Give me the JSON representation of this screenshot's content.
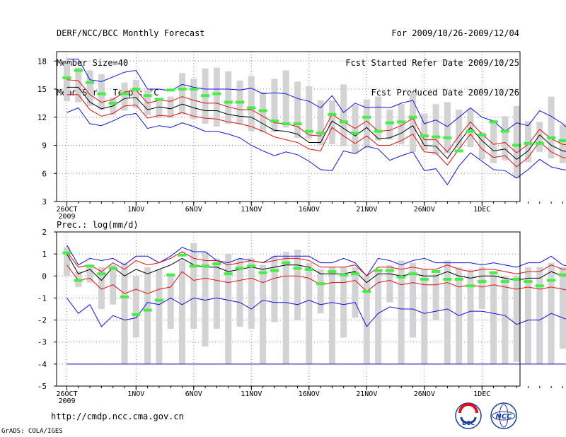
{
  "header": {
    "left_lines": [
      "DERF/NCC/BCC Monthly Forecast",
      "Member Size=40",
      "Mean Surf. Temp.: °C"
    ],
    "right_lines": [
      "For 2009/10/26-2009/12/04",
      "Fcst Started Refer Date 2009/10/25",
      "Fcst Produced Date 2009/10/26"
    ]
  },
  "footer": {
    "url": "http://cmdp.ncc.cma.gov.cn",
    "credit": "GrADS: COLA/IGES",
    "logo_left_text": "BCC",
    "logo_right_text": "NCC"
  },
  "colors": {
    "ensemble_box": "#d3d3d6",
    "median": "#44ee44",
    "mean": "#000000",
    "spread": "#dd1111",
    "extreme": "#1111dd",
    "grid": "#888888"
  },
  "chart_data": [
    {
      "type": "box",
      "title": "Mean Surf. Temp.: °C",
      "ylim": [
        3,
        19
      ],
      "yticks": [
        3,
        6,
        9,
        12,
        15,
        18
      ],
      "xticks": [
        {
          "day": 0,
          "label": "26OCT"
        },
        {
          "day": 6,
          "label": "1NOV"
        },
        {
          "day": 11,
          "label": "6NOV"
        },
        {
          "day": 16,
          "label": "11NOV"
        },
        {
          "day": 21,
          "label": "16NOV"
        },
        {
          "day": 26,
          "label": "21NOV"
        },
        {
          "day": 31,
          "label": "26NOV"
        },
        {
          "day": 36,
          "label": "1DEC"
        }
      ],
      "year_label": "2009",
      "box_low": [
        13.7,
        13.6,
        13.2,
        12.8,
        12.3,
        12.7,
        13.0,
        12.2,
        11.9,
        11.9,
        12.3,
        11.8,
        11.3,
        11.0,
        11.3,
        11.3,
        10.5,
        10.4,
        10.4,
        10.9,
        9.8,
        9.7,
        9.0,
        9.1,
        8.9,
        8.1,
        8.7,
        9.5,
        9.6,
        9.1,
        8.3,
        8.5,
        8.0,
        8.1,
        8.7,
        8.8,
        7.5,
        7.1,
        7.4,
        5.5,
        7.2,
        8.3,
        7.6,
        7.1,
        7.0,
        7.4
      ],
      "box_high": [
        17.7,
        17.3,
        17.0,
        16.6,
        14.1,
        15.7,
        16.0,
        14.9,
        14.1,
        14.2,
        16.7,
        16.1,
        17.2,
        17.3,
        16.9,
        15.9,
        16.4,
        14.7,
        16.1,
        17.0,
        15.8,
        15.3,
        13.8,
        13.8,
        15.5,
        13.3,
        13.9,
        14.2,
        12.8,
        13.4,
        14.6,
        12.4,
        13.4,
        13.6,
        12.8,
        12.9,
        10.4,
        11.7,
        12.1,
        13.2,
        11.6,
        11.5,
        14.2,
        11.2,
        11.7,
        11.5
      ],
      "median": [
        16.2,
        17.0,
        15.7,
        14.5,
        13.5,
        14.5,
        15.0,
        14.3,
        13.9,
        14.9,
        15.0,
        15.0,
        14.3,
        14.5,
        13.6,
        13.6,
        13.0,
        12.7,
        11.6,
        11.3,
        11.3,
        10.5,
        10.3,
        12.3,
        11.5,
        10.3,
        12.0,
        10.5,
        11.4,
        11.5,
        12.0,
        10.0,
        9.9,
        9.8,
        8.4,
        10.5,
        10.1,
        11.5,
        10.5,
        9.0,
        9.2,
        9.2,
        9.8,
        9.5,
        9.3,
        9.2
      ],
      "mean": [
        15.2,
        15.2,
        13.6,
        12.9,
        13.2,
        14.0,
        14.1,
        12.8,
        13.1,
        12.9,
        13.4,
        13.0,
        12.7,
        12.7,
        12.3,
        12.1,
        12.0,
        11.3,
        10.6,
        10.5,
        10.2,
        9.3,
        9.3,
        11.6,
        10.8,
        10.0,
        10.9,
        9.7,
        9.8,
        10.3,
        11.1,
        9.0,
        8.9,
        7.6,
        9.3,
        10.9,
        9.5,
        8.4,
        8.6,
        7.5,
        8.4,
        10.1,
        9.0,
        8.4,
        8.2,
        7.9
      ],
      "p_lo": [
        14.4,
        14.4,
        12.8,
        12.1,
        12.4,
        13.2,
        13.3,
        11.9,
        12.2,
        12.1,
        12.5,
        12.1,
        11.9,
        11.8,
        11.5,
        11.3,
        11.0,
        10.5,
        9.9,
        9.6,
        9.3,
        8.6,
        8.4,
        10.9,
        10.0,
        9.2,
        10.0,
        9.0,
        9.0,
        9.5,
        10.2,
        8.3,
        8.2,
        6.9,
        8.6,
        10.2,
        8.6,
        7.7,
        7.9,
        6.7,
        7.7,
        9.4,
        8.3,
        7.7,
        7.5,
        7.2
      ],
      "p_hi": [
        16.0,
        15.9,
        14.4,
        13.6,
        13.9,
        14.7,
        14.9,
        13.5,
        13.8,
        13.7,
        14.2,
        13.8,
        13.5,
        13.5,
        13.1,
        12.8,
        12.8,
        12.1,
        11.4,
        11.3,
        11.0,
        10.1,
        10.0,
        12.3,
        11.5,
        10.8,
        11.6,
        10.5,
        10.6,
        11.1,
        11.9,
        9.6,
        9.6,
        8.3,
        10.0,
        11.5,
        10.2,
        9.1,
        9.3,
        8.2,
        9.1,
        10.7,
        9.7,
        9.1,
        9.0,
        8.6
      ],
      "min": [
        12.5,
        13.0,
        11.3,
        11.1,
        11.6,
        12.2,
        12.4,
        10.8,
        11.1,
        10.9,
        11.4,
        11.0,
        10.5,
        10.5,
        10.2,
        9.8,
        9.0,
        8.4,
        7.9,
        8.3,
        8.0,
        7.3,
        6.4,
        6.3,
        8.4,
        8.1,
        8.9,
        8.6,
        7.4,
        7.9,
        8.3,
        6.3,
        6.5,
        4.8,
        6.8,
        8.2,
        7.3,
        6.4,
        6.3,
        5.5,
        6.4,
        7.5,
        6.7,
        6.4,
        6.3,
        6.8
      ],
      "max": [
        18.2,
        18.2,
        16.0,
        15.8,
        16.3,
        16.8,
        17.0,
        15.0,
        15.0,
        14.8,
        15.5,
        15.2,
        15.0,
        15.0,
        15.0,
        14.9,
        15.1,
        14.5,
        14.6,
        14.5,
        14.0,
        13.7,
        13.0,
        14.3,
        12.5,
        13.5,
        13.0,
        13.1,
        13.0,
        13.5,
        13.8,
        11.3,
        11.7,
        11.0,
        12.0,
        13.0,
        12.0,
        11.6,
        10.5,
        11.4,
        11.1,
        12.7,
        12.1,
        11.3,
        10.1,
        10.4
      ]
    },
    {
      "type": "box",
      "title": "Prec.: log(mm/d)",
      "ylim": [
        -5,
        2
      ],
      "yticks": [
        -5,
        -4,
        -3,
        -2,
        -1,
        0,
        1,
        2
      ],
      "xticks": [
        {
          "day": 0,
          "label": "26OCT"
        },
        {
          "day": 6,
          "label": "1NOV"
        },
        {
          "day": 11,
          "label": "6NOV"
        },
        {
          "day": 16,
          "label": "11NOV"
        },
        {
          "day": 21,
          "label": "16NOV"
        },
        {
          "day": 26,
          "label": "21NOV"
        },
        {
          "day": 31,
          "label": "26NOV"
        },
        {
          "day": 36,
          "label": "1DEC"
        }
      ],
      "year_label": "2009",
      "box_low": [
        0.0,
        -0.5,
        -0.3,
        -1.5,
        -1.3,
        -4.0,
        -2.8,
        -4.0,
        -4.0,
        -2.4,
        -4.0,
        -2.4,
        -3.2,
        -2.4,
        -4.0,
        -2.3,
        -2.4,
        -4.0,
        -2.1,
        -4.0,
        -2.0,
        -4.0,
        -1.7,
        -4.0,
        -2.8,
        -1.9,
        -4.0,
        -4.0,
        -1.2,
        -4.0,
        -2.8,
        -4.0,
        -2.0,
        -4.0,
        -4.0,
        -4.0,
        -1.5,
        -4.0,
        -4.0,
        -3.9,
        -4.0,
        -4.0,
        -4.0,
        -3.3,
        -4.0,
        -1.2
      ],
      "box_high": [
        1.3,
        0.2,
        0.4,
        0.4,
        0.5,
        0.6,
        0.0,
        0.4,
        0.3,
        0.1,
        0.7,
        1.5,
        1.1,
        0.8,
        1.0,
        0.8,
        0.8,
        0.5,
        0.9,
        1.1,
        1.2,
        0.6,
        0.3,
        0.4,
        0.4,
        0.4,
        0.0,
        0.3,
        0.5,
        0.7,
        0.6,
        0.3,
        0.1,
        0.7,
        0.4,
        0.3,
        0.4,
        0.1,
        0.0,
        0.0,
        0.4,
        0.4,
        0.6,
        0.4,
        0.4,
        0.4
      ],
      "median": [
        1.05,
        -0.2,
        0.45,
        0.1,
        0.35,
        -0.95,
        -1.75,
        -1.55,
        -1.1,
        0.05,
        0.95,
        0.45,
        0.45,
        0.55,
        0.1,
        0.35,
        0.45,
        0.15,
        0.25,
        0.6,
        0.35,
        0.3,
        -0.35,
        0.2,
        0.05,
        0.1,
        -0.7,
        0.25,
        0.25,
        -0.05,
        0.1,
        -0.15,
        0.2,
        -0.15,
        -0.15,
        -0.45,
        -0.25,
        0.15,
        -0.25,
        -0.15,
        -0.25,
        -0.45,
        -0.2,
        0.05,
        -0.2,
        -0.1
      ],
      "mean": [
        1.0,
        0.1,
        0.3,
        -0.2,
        0.4,
        0.0,
        0.3,
        0.1,
        0.3,
        0.5,
        0.8,
        0.5,
        0.4,
        0.4,
        0.2,
        0.3,
        0.4,
        0.3,
        0.4,
        0.5,
        0.5,
        0.4,
        0.1,
        0.1,
        0.1,
        0.2,
        -0.3,
        0.1,
        0.1,
        0.0,
        0.1,
        0.0,
        0.0,
        0.2,
        0.0,
        -0.1,
        0.0,
        0.0,
        -0.1,
        -0.2,
        -0.1,
        -0.1,
        0.2,
        0.0,
        0.0,
        0.0
      ],
      "p_lo": [
        0.5,
        -0.2,
        -0.1,
        -0.6,
        -0.4,
        -0.8,
        -0.6,
        -0.8,
        -0.6,
        -0.5,
        0.2,
        -0.2,
        -0.1,
        -0.2,
        -0.3,
        -0.2,
        -0.1,
        -0.3,
        -0.1,
        0.0,
        0.0,
        -0.1,
        -0.4,
        -0.3,
        -0.3,
        -0.2,
        -0.7,
        -0.3,
        -0.2,
        -0.4,
        -0.3,
        -0.4,
        -0.4,
        -0.3,
        -0.5,
        -0.4,
        -0.5,
        -0.4,
        -0.5,
        -0.6,
        -0.5,
        -0.6,
        -0.5,
        -0.6,
        -0.7,
        -0.7
      ],
      "p_hi": [
        1.1,
        0.4,
        0.5,
        0.2,
        0.6,
        0.3,
        0.7,
        0.5,
        0.6,
        0.8,
        1.1,
        0.8,
        0.7,
        0.7,
        0.5,
        0.6,
        0.7,
        0.6,
        0.7,
        0.8,
        0.8,
        0.7,
        0.4,
        0.4,
        0.4,
        0.5,
        0.0,
        0.4,
        0.4,
        0.3,
        0.4,
        0.3,
        0.3,
        0.5,
        0.3,
        0.2,
        0.3,
        0.3,
        0.2,
        0.1,
        0.2,
        0.2,
        0.5,
        0.3,
        0.3,
        0.2
      ],
      "min": [
        -1.0,
        -1.7,
        -1.3,
        -2.3,
        -1.8,
        -2.0,
        -1.9,
        -1.2,
        -1.3,
        -1.0,
        -1.3,
        -1.0,
        -1.1,
        -1.0,
        -1.1,
        -1.2,
        -1.5,
        -1.1,
        -1.2,
        -1.2,
        -1.3,
        -1.1,
        -1.3,
        -1.2,
        -1.3,
        -1.2,
        -2.3,
        -1.7,
        -1.4,
        -1.5,
        -1.5,
        -1.7,
        -1.6,
        -1.5,
        -1.8,
        -1.6,
        -1.6,
        -1.7,
        -1.8,
        -2.2,
        -2.0,
        -2.0,
        -1.7,
        -1.9,
        -2.1,
        -2.1
      ],
      "max": [
        1.4,
        0.5,
        0.8,
        0.7,
        0.8,
        0.5,
        0.9,
        0.9,
        0.6,
        0.9,
        1.3,
        1.1,
        1.1,
        0.7,
        0.6,
        0.8,
        0.7,
        0.6,
        0.9,
        0.9,
        0.9,
        0.9,
        0.6,
        0.6,
        0.8,
        0.6,
        0.0,
        0.8,
        0.7,
        0.5,
        0.7,
        0.8,
        0.6,
        0.6,
        0.6,
        0.6,
        0.5,
        0.6,
        0.5,
        0.4,
        0.6,
        0.6,
        0.9,
        0.5,
        0.4,
        0.3
      ],
      "floor": -4
    }
  ]
}
